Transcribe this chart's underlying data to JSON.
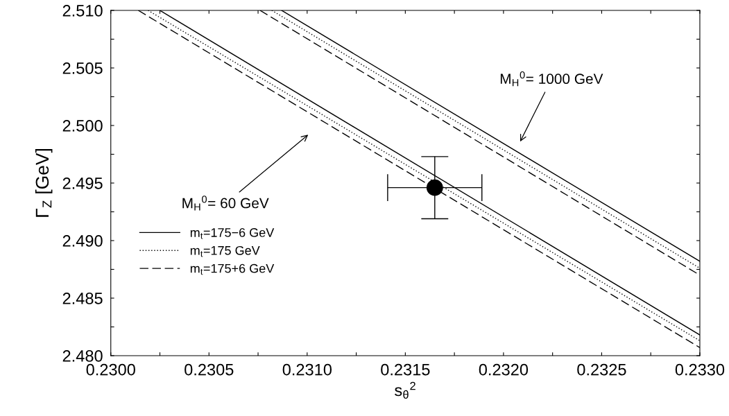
{
  "chart_data": {
    "type": "line",
    "xlabel": "s$_{θ}$$^{2}$",
    "ylabel": "Γ$_{Z}$ [GeV]",
    "xlim": [
      0.23,
      0.233
    ],
    "ylim": [
      2.48,
      2.51
    ],
    "xticks": [
      {
        "value": 0.23,
        "label": "0.2300"
      },
      {
        "value": 0.23025,
        "label": null
      },
      {
        "value": 0.2305,
        "label": "0.2305"
      },
      {
        "value": 0.23075,
        "label": null
      },
      {
        "value": 0.231,
        "label": "0.2310"
      },
      {
        "value": 0.23125,
        "label": null
      },
      {
        "value": 0.2315,
        "label": "0.2315"
      },
      {
        "value": 0.23175,
        "label": null
      },
      {
        "value": 0.232,
        "label": "0.2320"
      },
      {
        "value": 0.23225,
        "label": null
      },
      {
        "value": 0.2325,
        "label": "0.2325"
      },
      {
        "value": 0.23275,
        "label": null
      },
      {
        "value": 0.233,
        "label": "0.2330"
      }
    ],
    "yticks": [
      {
        "value": 2.48,
        "label": "2.480"
      },
      {
        "value": 2.4825,
        "label": null
      },
      {
        "value": 2.485,
        "label": "2.485"
      },
      {
        "value": 2.4875,
        "label": null
      },
      {
        "value": 2.49,
        "label": "2.490"
      },
      {
        "value": 2.4925,
        "label": null
      },
      {
        "value": 2.495,
        "label": "2.495"
      },
      {
        "value": 2.4975,
        "label": null
      },
      {
        "value": 2.5,
        "label": "2.500"
      },
      {
        "value": 2.5025,
        "label": null
      },
      {
        "value": 2.505,
        "label": "2.505"
      },
      {
        "value": 2.5075,
        "label": null
      },
      {
        "value": 2.51,
        "label": "2.510"
      }
    ],
    "grid": false,
    "legend": "bottom left",
    "marker": "none",
    "series": [
      {
        "name": "m$_{t}$=175−6 GeV",
        "color": "#000000",
        "line_style": "solid",
        "x": [
          0.23025,
          0.233
        ],
        "values": [
          2.51,
          2.4818
        ]
      },
      {
        "name": "m$_{t}$=175 GeV",
        "color": "#000000",
        "line_style": "dotted",
        "x": [
          0.23019,
          0.233
        ],
        "values": [
          2.51,
          2.4813
        ]
      },
      {
        "name": "m$_{t}$=175+6 GeV",
        "color": "#000000",
        "line_style": "dashed",
        "x": [
          0.23014,
          0.233
        ],
        "values": [
          2.51,
          2.4807
        ]
      },
      {
        "color": "#000000",
        "line_style": "solid",
        "x": [
          0.23087,
          0.233
        ],
        "values": [
          2.51,
          2.4882
        ]
      },
      {
        "color": "#000000",
        "line_style": "dotted",
        "x": [
          0.23082,
          0.233
        ],
        "values": [
          2.51,
          2.4876
        ]
      },
      {
        "color": "#000000",
        "line_style": "dashed",
        "x": [
          0.23076,
          0.233
        ],
        "values": [
          2.51,
          2.487
        ]
      },
      {
        "type": "scatter",
        "color": "#000000",
        "marker": "circle",
        "x": [
          0.23165
        ],
        "values": [
          2.4946
        ],
        "errors": [
          0.0027
        ],
        "xerrors": [
          0.00024
        ]
      }
    ],
    "annotations": [
      "M$_{H}$$^{0}$= 1000 GeV",
      "M$_{H}$$^{0}$= 60 GeV"
    ]
  }
}
